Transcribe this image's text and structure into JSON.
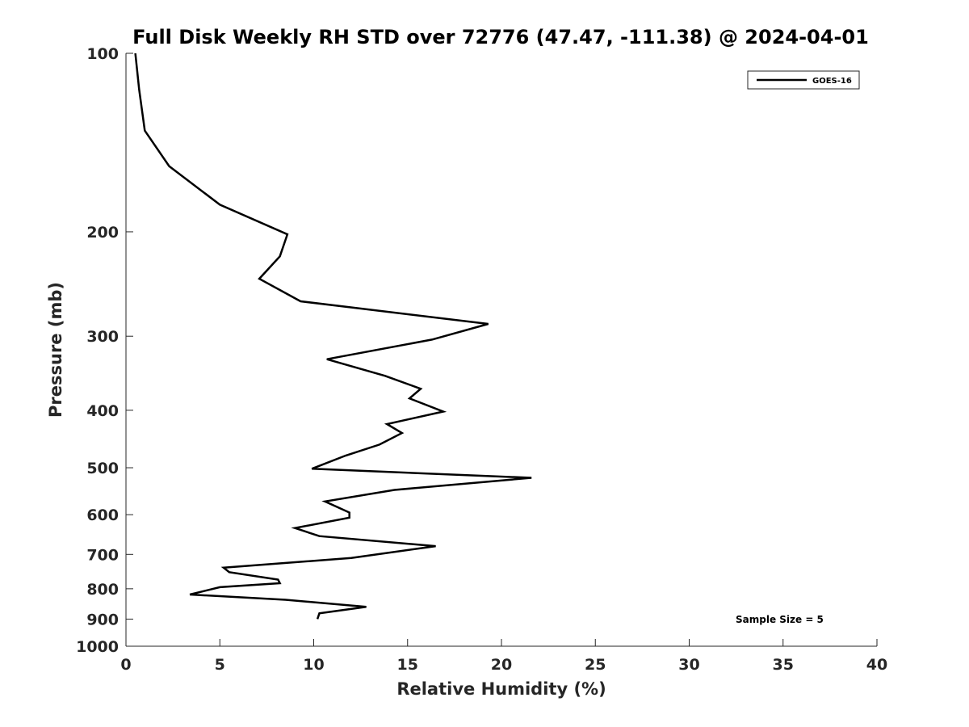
{
  "chart_data": {
    "type": "line",
    "title": "Full Disk Weekly RH STD over 72776 (47.47, -111.38) @ 2024-04-01",
    "xlabel": "Relative Humidity (%)",
    "ylabel": "Pressure (mb)",
    "xlim": [
      0,
      40
    ],
    "ylim": [
      100,
      1000
    ],
    "yscale": "log",
    "y_reversed": true,
    "xticks": [
      "0",
      "5",
      "10",
      "15",
      "20",
      "25",
      "30",
      "35",
      "40"
    ],
    "yticks": [
      "100",
      "200",
      "300",
      "400",
      "500",
      "600",
      "700",
      "800",
      "900",
      "1000"
    ],
    "grid": false,
    "legend_position": "top-right",
    "series": [
      {
        "name": "GOES-16",
        "color": "#000000",
        "x": [
          0.5,
          0.7,
          1.0,
          2.3,
          5.0,
          8.6,
          8.2,
          7.1,
          9.3,
          19.3,
          16.3,
          10.7,
          13.8,
          15.7,
          15.1,
          16.9,
          13.9,
          14.7,
          13.5,
          11.7,
          9.9,
          21.6,
          14.3,
          10.6,
          11.9,
          11.9,
          9.0,
          10.3,
          16.5,
          12.0,
          5.2,
          5.5,
          8.1,
          8.2,
          5.0,
          3.4,
          8.5,
          12.8,
          10.3,
          10.2
        ],
        "y": [
          100,
          115,
          135,
          155,
          180,
          202,
          220,
          240,
          262,
          286,
          304,
          328,
          350,
          368,
          382,
          402,
          422,
          437,
          457,
          477,
          502,
          520,
          545,
          570,
          595,
          607,
          632,
          652,
          678,
          710,
          737,
          750,
          772,
          783,
          795,
          818,
          835,
          858,
          880,
          900
        ]
      }
    ],
    "annotation": "Sample Size = 5"
  }
}
